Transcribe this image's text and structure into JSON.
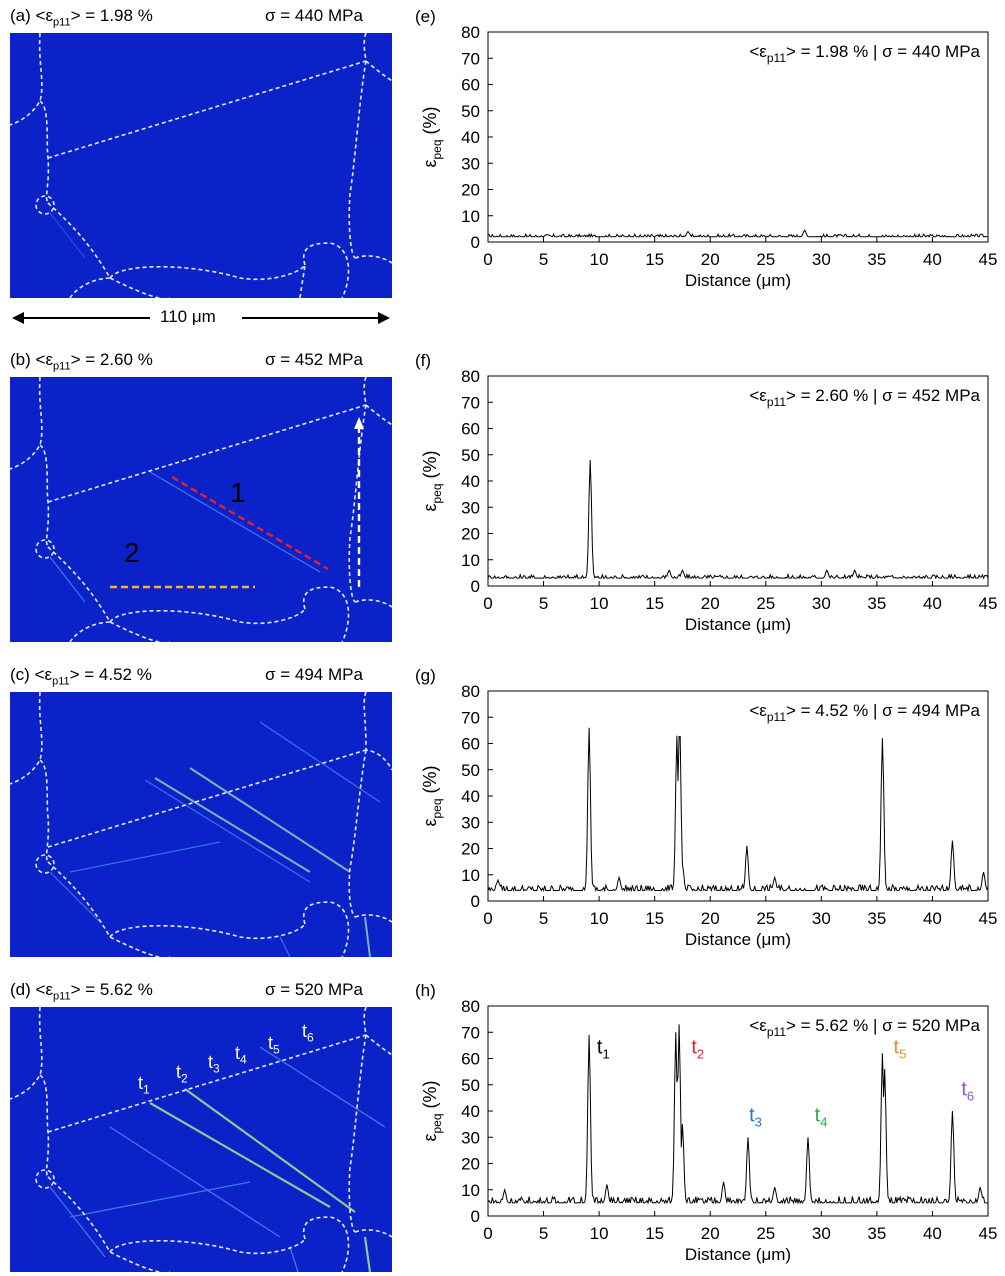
{
  "figure": {
    "map_panels": [
      {
        "label": "(a)",
        "strain_prefix": "<ε",
        "strain_sub": "p11",
        "strain_value": "> = 1.98 %",
        "stress": "σ = 440 MPa"
      },
      {
        "label": "(b)",
        "strain_prefix": "<ε",
        "strain_sub": "p11",
        "strain_value": "> = 2.60 %",
        "stress": "σ = 452 MPa"
      },
      {
        "label": "(c)",
        "strain_prefix": "<ε",
        "strain_sub": "p11",
        "strain_value": "> = 4.52 %",
        "stress": "σ = 494 MPa"
      },
      {
        "label": "(d)",
        "strain_prefix": "<ε",
        "strain_sub": "p11",
        "strain_value": "> = 5.62 %",
        "stress": "σ = 520 MPa"
      }
    ],
    "scale_bar": "110 μm",
    "line_labels": {
      "one": "1",
      "two": "2",
      "one_color": "#e8202a",
      "two_color": "#f2b428"
    },
    "twin_labels": [
      "t",
      "t",
      "t",
      "t",
      "t",
      "t"
    ],
    "twin_subs": [
      "1",
      "2",
      "3",
      "4",
      "5",
      "6"
    ]
  },
  "chart_data": [
    {
      "type": "line",
      "panel_label": "(e)",
      "annotation": {
        "prefix": "<ε",
        "sub": "p11",
        "suffix": "> = 1.98 % | σ = 440 MPa"
      },
      "xlabel": "Distance (μm)",
      "ylabel_main": "ε",
      "ylabel_sub": "peq",
      "ylabel_unit": " (%)",
      "xlim": [
        0,
        45
      ],
      "ylim": [
        0,
        80
      ],
      "xticks": [
        0,
        5,
        10,
        15,
        20,
        25,
        30,
        35,
        40,
        45
      ],
      "yticks": [
        0,
        10,
        20,
        30,
        40,
        50,
        60,
        70,
        80
      ],
      "baseline": 2,
      "noise": 1,
      "peaks": [
        [
          18,
          4
        ],
        [
          28.5,
          4.5
        ]
      ],
      "peak_labels": []
    },
    {
      "type": "line",
      "panel_label": "(f)",
      "annotation": {
        "prefix": "<ε",
        "sub": "p11",
        "suffix": "> = 2.60 % | σ = 452 MPa"
      },
      "xlabel": "Distance (μm)",
      "ylabel_main": "ε",
      "ylabel_sub": "peq",
      "ylabel_unit": " (%)",
      "xlim": [
        0,
        45
      ],
      "ylim": [
        0,
        80
      ],
      "xticks": [
        0,
        5,
        10,
        15,
        20,
        25,
        30,
        35,
        40,
        45
      ],
      "yticks": [
        0,
        10,
        20,
        30,
        40,
        50,
        60,
        70,
        80
      ],
      "baseline": 3,
      "noise": 1.4,
      "peaks": [
        [
          9.2,
          48
        ],
        [
          16.3,
          6
        ],
        [
          17.5,
          6
        ],
        [
          30.5,
          6
        ],
        [
          33,
          6
        ]
      ],
      "peak_labels": []
    },
    {
      "type": "line",
      "panel_label": "(g)",
      "annotation": {
        "prefix": "<ε",
        "sub": "p11",
        "suffix": "> = 4.52 % | σ = 494 MPa"
      },
      "xlabel": "Distance (μm)",
      "ylabel_main": "ε",
      "ylabel_sub": "peq",
      "ylabel_unit": " (%)",
      "xlim": [
        0,
        45
      ],
      "ylim": [
        0,
        80
      ],
      "xticks": [
        0,
        5,
        10,
        15,
        20,
        25,
        30,
        35,
        40,
        45
      ],
      "yticks": [
        0,
        10,
        20,
        30,
        40,
        50,
        60,
        70,
        80
      ],
      "baseline": 4,
      "noise": 2.2,
      "peaks": [
        [
          0.9,
          8
        ],
        [
          9.1,
          66
        ],
        [
          11.8,
          9
        ],
        [
          17.0,
          63
        ],
        [
          17.25,
          68
        ],
        [
          17.5,
          14
        ],
        [
          23.3,
          21
        ],
        [
          25.8,
          9
        ],
        [
          35.5,
          62
        ],
        [
          41.8,
          23
        ],
        [
          44.6,
          11
        ]
      ],
      "peak_labels": []
    },
    {
      "type": "line",
      "panel_label": "(h)",
      "annotation": {
        "prefix": "<ε",
        "sub": "p11",
        "suffix": "> = 5.62 % | σ = 520 MPa"
      },
      "xlabel": "Distance (μm)",
      "ylabel_main": "ε",
      "ylabel_sub": "peq",
      "ylabel_unit": " (%)",
      "xlim": [
        0,
        45
      ],
      "ylim": [
        0,
        80
      ],
      "xticks": [
        0,
        5,
        10,
        15,
        20,
        25,
        30,
        35,
        40,
        45
      ],
      "yticks": [
        0,
        10,
        20,
        30,
        40,
        50,
        60,
        70,
        80
      ],
      "baseline": 5,
      "noise": 2.5,
      "peaks": [
        [
          1.5,
          10
        ],
        [
          9.1,
          69
        ],
        [
          10.7,
          12
        ],
        [
          16.9,
          70
        ],
        [
          17.2,
          73
        ],
        [
          17.5,
          35
        ],
        [
          21.2,
          13
        ],
        [
          23.4,
          30
        ],
        [
          25.8,
          11
        ],
        [
          28.8,
          30
        ],
        [
          35.5,
          62
        ],
        [
          35.7,
          56
        ],
        [
          41.8,
          40
        ],
        [
          44.3,
          11
        ]
      ],
      "peak_labels": [
        {
          "text": "t",
          "sub": "1",
          "x": 9.8,
          "y": 62,
          "color": "#000000"
        },
        {
          "text": "t",
          "sub": "2",
          "x": 18.3,
          "y": 62,
          "color": "#e8202a"
        },
        {
          "text": "t",
          "sub": "3",
          "x": 23.5,
          "y": 36,
          "color": "#1f77c8"
        },
        {
          "text": "t",
          "sub": "4",
          "x": 29.4,
          "y": 36,
          "color": "#2aaa4a"
        },
        {
          "text": "t",
          "sub": "5",
          "x": 36.5,
          "y": 62,
          "color": "#f08c28"
        },
        {
          "text": "t",
          "sub": "6",
          "x": 42.6,
          "y": 46,
          "color": "#9a4fc8"
        }
      ]
    }
  ]
}
